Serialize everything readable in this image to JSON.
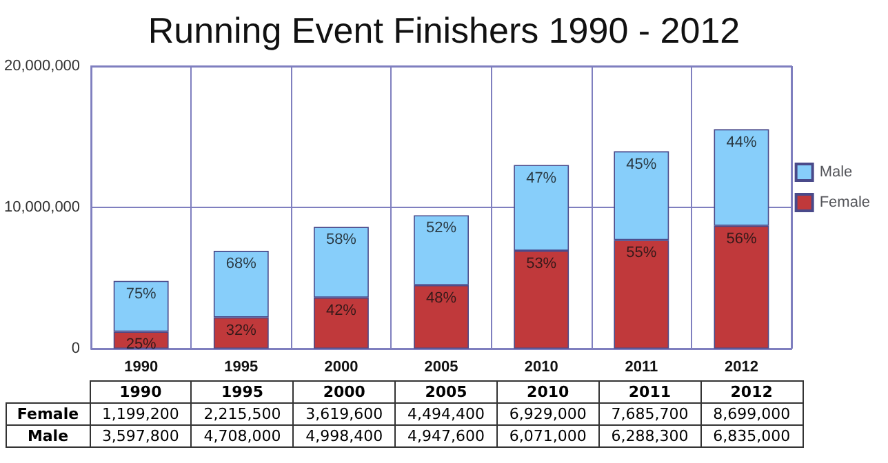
{
  "chart_data": {
    "type": "bar",
    "title": "Running Event Finishers 1990 - 2012",
    "categories": [
      "1990",
      "1995",
      "2000",
      "2005",
      "2010",
      "2011",
      "2012"
    ],
    "stacked": true,
    "series": [
      {
        "name": "Female",
        "color": "#c0393b",
        "values": [
          1199200,
          2215500,
          3619600,
          4494400,
          6929000,
          7685700,
          8699000
        ],
        "value_labels": [
          "1,199,200",
          "2,215,500",
          "3,619,600",
          "4,494,400",
          "6,929,000",
          "7,685,700",
          "8,699,000"
        ]
      },
      {
        "name": "Male",
        "color": "#87cefa",
        "values": [
          3597800,
          4708000,
          4998400,
          4947600,
          6071000,
          6288300,
          6835000
        ],
        "value_labels": [
          "3,597,800",
          "4,708,000",
          "4,998,400",
          "4,947,600",
          "6,071,000",
          "6,288,300",
          "6,835,000"
        ]
      }
    ],
    "annotations": [
      {
        "text": "25%",
        "x": "1990",
        "y": 1199200
      },
      {
        "text": "32%",
        "x": "1995",
        "y": 2215500
      },
      {
        "text": "42%",
        "x": "2000",
        "y": 3619600
      },
      {
        "text": "48%",
        "x": "2005",
        "y": 4494400
      },
      {
        "text": "53%",
        "x": "2010",
        "y": 6929000
      },
      {
        "text": "55%",
        "x": "2011",
        "y": 7685700
      },
      {
        "text": "56%",
        "x": "2012",
        "y": 8699000
      },
      {
        "text": "75%",
        "x": "1990",
        "y": 4797000
      },
      {
        "text": "68%",
        "x": "1995",
        "y": 6923500
      },
      {
        "text": "58%",
        "x": "2000",
        "y": 8618000
      },
      {
        "text": "52%",
        "x": "2005",
        "y": 9442000
      },
      {
        "text": "47%",
        "x": "2010",
        "y": 13000000
      },
      {
        "text": "45%",
        "x": "2011",
        "y": 13974000
      },
      {
        "text": "44%",
        "x": "2012",
        "y": 15534000
      }
    ],
    "ylim": [
      0,
      20000000
    ],
    "yticks": [
      0,
      {
        "value": 10000000,
        "label": "10,000,000"
      },
      {
        "value": 20000000,
        "label": "20,000,000"
      }
    ],
    "grid": true,
    "legend": "right"
  }
}
